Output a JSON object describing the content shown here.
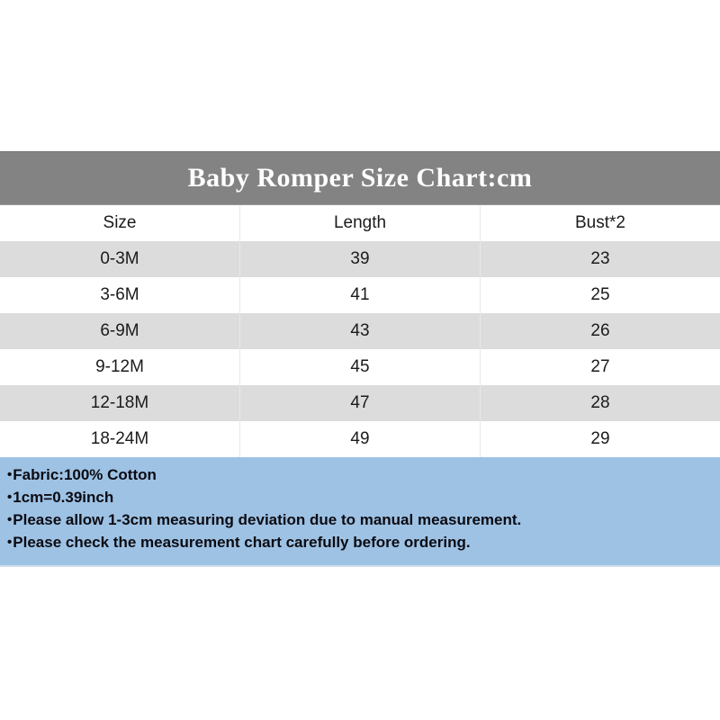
{
  "chart_data": {
    "type": "table",
    "title": "Baby Romper Size Chart:cm",
    "units": "cm",
    "columns": [
      "Size",
      "Length",
      "Bust*2"
    ],
    "rows": [
      [
        "0-3M",
        "39",
        "23"
      ],
      [
        "3-6M",
        "41",
        "25"
      ],
      [
        "6-9M",
        "43",
        "26"
      ],
      [
        "9-12M",
        "45",
        "27"
      ],
      [
        "12-18M",
        "47",
        "28"
      ],
      [
        "18-24M",
        "49",
        "29"
      ]
    ]
  },
  "notes": {
    "bullet": "•",
    "items": [
      "Fabric:100% Cotton",
      "1cm=0.39inch",
      "Please allow 1-3cm measuring deviation due to manual measurement.",
      "Please check the measurement chart carefully before ordering."
    ]
  },
  "colors": {
    "title_bar_bg": "#838383",
    "title_text": "#ffffff",
    "band_row_bg": "#dcdcdc",
    "plain_row_bg": "#ffffff",
    "column_separator": "#e9e9e9",
    "notes_bg": "#9ec2e4",
    "notes_text": "#0b0b12",
    "table_text": "#1b1b1b"
  }
}
